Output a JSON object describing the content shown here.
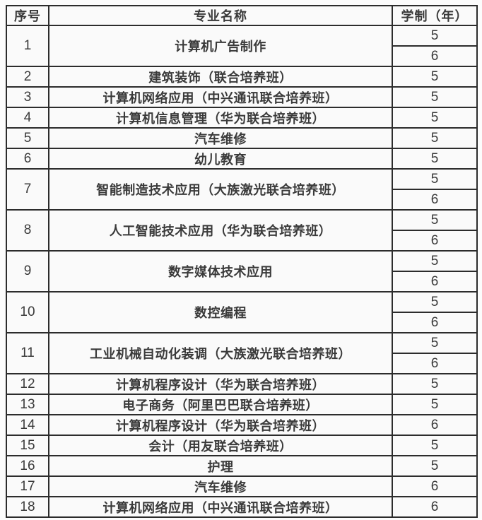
{
  "colors": {
    "background": "#fcfcfc",
    "cell_background": "#fafafa",
    "border": "#2c2c2c",
    "text": "#3a3a3a"
  },
  "table": {
    "headers": [
      "序号",
      "专业名称",
      "学制（年）"
    ],
    "rows": [
      {
        "no": "1",
        "major": "计算机广告制作",
        "years": [
          "5",
          "6"
        ]
      },
      {
        "no": "2",
        "major": "建筑装饰（联合培养班）",
        "years": [
          "5"
        ]
      },
      {
        "no": "3",
        "major": "计算机网络应用（中兴通讯联合培养班）",
        "years": [
          "5"
        ]
      },
      {
        "no": "4",
        "major": "计算机信息管理（华为联合培养班）",
        "years": [
          "5"
        ]
      },
      {
        "no": "5",
        "major": "汽车维修",
        "years": [
          "5"
        ]
      },
      {
        "no": "6",
        "major": "幼儿教育",
        "years": [
          "5"
        ]
      },
      {
        "no": "7",
        "major": "智能制造技术应用（大族激光联合培养班）",
        "years": [
          "5",
          "6"
        ]
      },
      {
        "no": "8",
        "major": "人工智能技术应用（华为联合培养班）",
        "years": [
          "5",
          "6"
        ]
      },
      {
        "no": "9",
        "major": "数字媒体技术应用",
        "years": [
          "5",
          "6"
        ]
      },
      {
        "no": "10",
        "major": "数控编程",
        "years": [
          "5",
          "6"
        ]
      },
      {
        "no": "11",
        "major": "工业机械自动化装调（大族激光联合培养班）",
        "years": [
          "5",
          "6"
        ]
      },
      {
        "no": "12",
        "major": "计算机程序设计（华为联合培养班）",
        "years": [
          "5"
        ]
      },
      {
        "no": "13",
        "major": "电子商务（阿里巴巴联合培养班）",
        "years": [
          "5"
        ]
      },
      {
        "no": "14",
        "major": "计算机程序设计（华为联合培养班）",
        "years": [
          "6"
        ]
      },
      {
        "no": "15",
        "major": "会计（用友联合培养班）",
        "years": [
          "5"
        ]
      },
      {
        "no": "16",
        "major": "护理",
        "years": [
          "5"
        ]
      },
      {
        "no": "17",
        "major": "汽车维修",
        "years": [
          "6"
        ]
      },
      {
        "no": "18",
        "major": "计算机网络应用（中兴通讯联合培养班）",
        "years": [
          "6"
        ]
      }
    ]
  }
}
